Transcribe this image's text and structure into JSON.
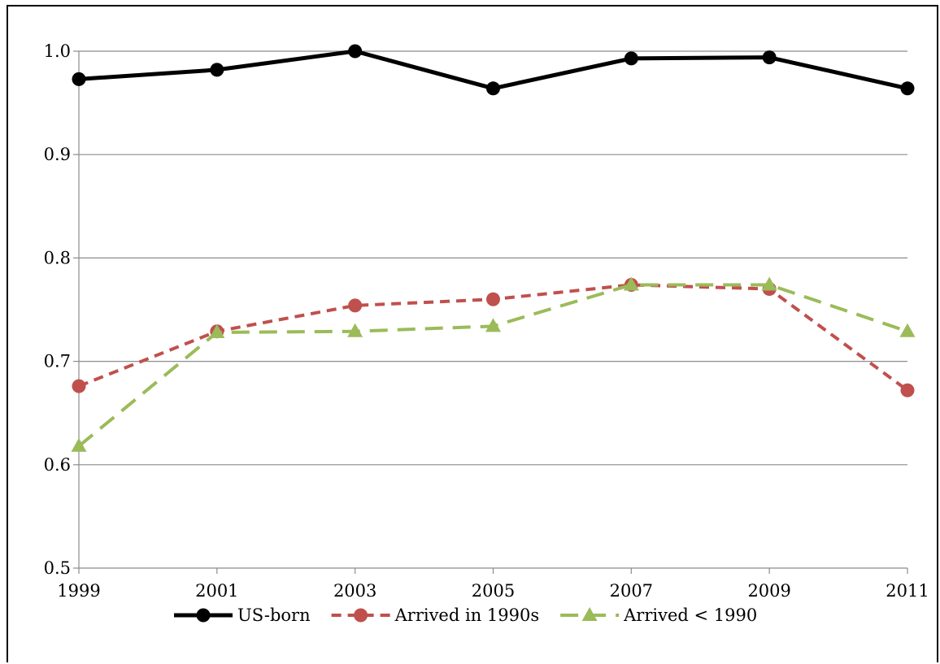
{
  "chart_data": {
    "type": "line",
    "x": [
      1999,
      2001,
      2003,
      2005,
      2007,
      2009,
      2011
    ],
    "x_tick_labels": [
      "1999",
      "2001",
      "2003",
      "2005",
      "2007",
      "2009",
      "2011"
    ],
    "ylim": [
      0.5,
      1.0
    ],
    "y_ticks": [
      0.5,
      0.6,
      0.7,
      0.8,
      0.9,
      1.0
    ],
    "y_tick_labels": [
      "0.5",
      "0.6",
      "0.7",
      "0.8",
      "0.9",
      "1.0"
    ],
    "grid": "horizontal",
    "legend_position": "bottom",
    "series": [
      {
        "name": "US-born",
        "values": [
          0.973,
          0.982,
          1.0,
          0.964,
          0.993,
          0.994,
          0.964
        ],
        "color": "#000000",
        "line_style": "solid",
        "marker": "circle"
      },
      {
        "name": "Arrived in 1990s",
        "values": [
          0.676,
          0.729,
          0.754,
          0.76,
          0.774,
          0.77,
          0.672
        ],
        "color": "#c0504d",
        "line_style": "dashed",
        "marker": "circle"
      },
      {
        "name": "Arrived < 1990",
        "values": [
          0.618,
          0.728,
          0.729,
          0.734,
          0.774,
          0.774,
          0.729
        ],
        "color": "#9bbb59",
        "line_style": "dashed",
        "marker": "triangle"
      }
    ]
  }
}
